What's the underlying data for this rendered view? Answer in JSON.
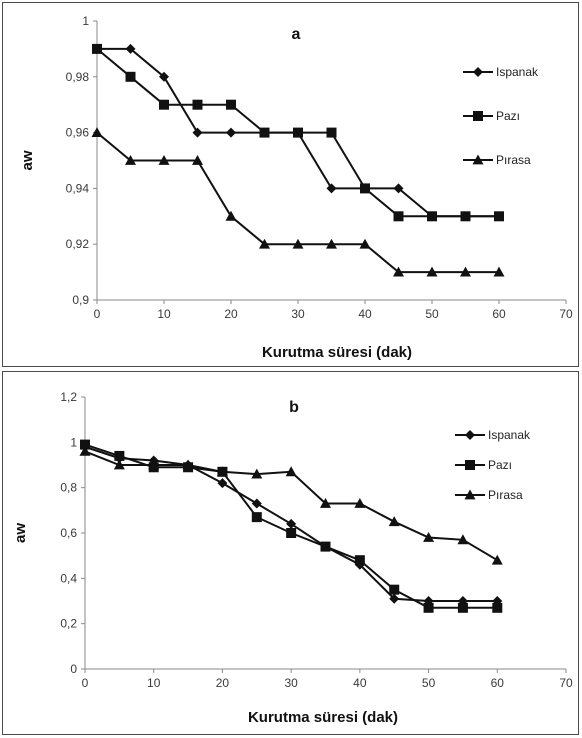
{
  "chart_data": [
    {
      "type": "line",
      "panel_label": "a",
      "xlabel": "Kurutma süresi (dak)",
      "ylabel": "aw",
      "xlim": [
        0,
        70
      ],
      "ylim": [
        0.9,
        1.0
      ],
      "xticks": [
        "0",
        "10",
        "20",
        "30",
        "40",
        "50",
        "60",
        "70"
      ],
      "yticks": [
        "0,9",
        "0,92",
        "0,94",
        "0,96",
        "0,98",
        "1"
      ],
      "legend_position": "right",
      "grid": false,
      "series": [
        {
          "name": "Ispanak",
          "marker": "diamond",
          "x": [
            0,
            5,
            10,
            15,
            20,
            25,
            30,
            35,
            40,
            45,
            50,
            55,
            60
          ],
          "y": [
            0.99,
            0.99,
            0.98,
            0.96,
            0.96,
            0.96,
            0.96,
            0.94,
            0.94,
            0.94,
            0.93,
            0.93,
            0.93
          ]
        },
        {
          "name": "Pazı",
          "marker": "square",
          "x": [
            0,
            5,
            10,
            15,
            20,
            25,
            30,
            35,
            40,
            45,
            50,
            55,
            60
          ],
          "y": [
            0.99,
            0.98,
            0.97,
            0.97,
            0.97,
            0.96,
            0.96,
            0.96,
            0.94,
            0.93,
            0.93,
            0.93,
            0.93
          ]
        },
        {
          "name": "Pırasa",
          "marker": "triangle",
          "x": [
            0,
            5,
            10,
            15,
            20,
            25,
            30,
            35,
            40,
            45,
            50,
            55,
            60
          ],
          "y": [
            0.96,
            0.95,
            0.95,
            0.95,
            0.93,
            0.92,
            0.92,
            0.92,
            0.92,
            0.91,
            0.91,
            0.91,
            0.91
          ]
        }
      ]
    },
    {
      "type": "line",
      "panel_label": "b",
      "xlabel": "Kurutma süresi (dak)",
      "ylabel": "aw",
      "xlim": [
        0,
        70
      ],
      "ylim": [
        0,
        1.2
      ],
      "xticks": [
        "0",
        "10",
        "20",
        "30",
        "40",
        "50",
        "60",
        "70"
      ],
      "yticks": [
        "0",
        "0,2",
        "0,4",
        "0,6",
        "0,8",
        "1",
        "1,2"
      ],
      "legend_position": "right",
      "grid": false,
      "series": [
        {
          "name": "Ispanak",
          "marker": "diamond",
          "x": [
            0,
            5,
            10,
            15,
            20,
            25,
            30,
            35,
            40,
            45,
            50,
            55,
            60
          ],
          "y": [
            0.98,
            0.93,
            0.92,
            0.9,
            0.82,
            0.73,
            0.64,
            0.54,
            0.46,
            0.31,
            0.3,
            0.3,
            0.3
          ]
        },
        {
          "name": "Pazı",
          "marker": "square",
          "x": [
            0,
            5,
            10,
            15,
            20,
            25,
            30,
            35,
            40,
            45,
            50,
            55,
            60
          ],
          "y": [
            0.99,
            0.94,
            0.89,
            0.89,
            0.87,
            0.67,
            0.6,
            0.54,
            0.48,
            0.35,
            0.27,
            0.27,
            0.27
          ]
        },
        {
          "name": "Pırasa",
          "marker": "triangle",
          "x": [
            0,
            5,
            10,
            15,
            20,
            25,
            30,
            35,
            40,
            45,
            50,
            55,
            60
          ],
          "y": [
            0.96,
            0.9,
            0.9,
            0.9,
            0.87,
            0.86,
            0.87,
            0.73,
            0.73,
            0.65,
            0.58,
            0.57,
            0.48
          ]
        }
      ]
    }
  ]
}
